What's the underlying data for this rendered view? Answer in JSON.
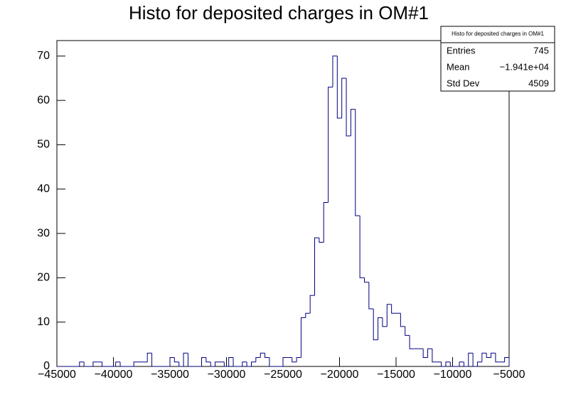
{
  "chart_data": {
    "type": "histogram",
    "title": "Histo for deposited charges in OM#1",
    "color": "#000080",
    "bins": [
      -45000,
      -44600,
      -44200,
      -43800,
      -43400,
      -43000,
      -42600,
      -42200,
      -41800,
      -41400,
      -41000,
      -40600,
      -40200,
      -39800,
      -39400,
      -39000,
      -38600,
      -38200,
      -37800,
      -37400,
      -37000,
      -36600,
      -36200,
      -35800,
      -35400,
      -35000,
      -34600,
      -34200,
      -33800,
      -33400,
      -33000,
      -32600,
      -32200,
      -31800,
      -31400,
      -31000,
      -30600,
      -30200,
      -29800,
      -29400,
      -29000,
      -28600,
      -28200,
      -27800,
      -27400,
      -27000,
      -26600,
      -26200,
      -25800,
      -25400,
      -25000,
      -24600,
      -24200,
      -23800,
      -23400,
      -23000,
      -22600,
      -22200,
      -21800,
      -21400,
      -21000,
      -20600,
      -20200,
      -19800,
      -19400,
      -19000,
      -18600,
      -18200,
      -17800,
      -17400,
      -17000,
      -16600,
      -16200,
      -15800,
      -15400,
      -15000,
      -14600,
      -14200,
      -13800,
      -13400,
      -13000,
      -12600,
      -12200,
      -11800,
      -11400,
      -11000,
      -10600,
      -10200,
      -9800,
      -9400,
      -9000,
      -8600,
      -8200,
      -7800,
      -7400,
      -7000,
      -6600,
      -6200,
      -5800,
      -5400,
      -5000
    ],
    "counts": [
      0,
      0,
      0,
      0,
      0,
      1,
      0,
      0,
      1,
      1,
      0,
      0,
      0,
      1,
      0,
      0,
      0,
      1,
      1,
      1,
      3,
      0,
      0,
      0,
      0,
      2,
      1,
      0,
      3,
      0,
      0,
      0,
      2,
      1,
      0,
      1,
      1,
      0,
      2,
      0,
      0,
      1,
      0,
      1,
      2,
      3,
      2,
      0,
      0,
      0,
      2,
      2,
      1,
      2,
      11,
      12,
      16,
      29,
      28,
      37,
      63,
      70,
      56,
      65,
      52,
      58,
      34,
      20,
      19,
      13,
      6,
      11,
      9,
      14,
      12,
      12,
      9,
      7,
      4,
      4,
      4,
      2,
      4,
      1,
      1,
      0,
      1,
      0,
      0,
      1,
      0,
      3,
      0,
      1,
      3,
      2,
      3,
      1,
      1,
      2
    ],
    "xlim": [
      -45000,
      -5000
    ],
    "xticks": [
      {
        "value": -45000,
        "label": "−45000"
      },
      {
        "value": -40000,
        "label": "−40000"
      },
      {
        "value": -35000,
        "label": "−35000"
      },
      {
        "value": -30000,
        "label": "−30000"
      },
      {
        "value": -25000,
        "label": "−25000"
      },
      {
        "value": -20000,
        "label": "−20000"
      },
      {
        "value": -15000,
        "label": "−15000"
      },
      {
        "value": -10000,
        "label": "−10000"
      },
      {
        "value": -5000,
        "label": "−5000"
      }
    ],
    "ylim": [
      0,
      73.5
    ],
    "yticks": [
      0,
      10,
      20,
      30,
      40,
      50,
      60,
      70
    ],
    "stats": {
      "title": "Histo for deposited charges in OM#1",
      "rows": [
        [
          "Entries",
          "745"
        ],
        [
          "Mean",
          "−1.941e+04"
        ],
        [
          "Std Dev",
          "4509"
        ]
      ]
    }
  }
}
